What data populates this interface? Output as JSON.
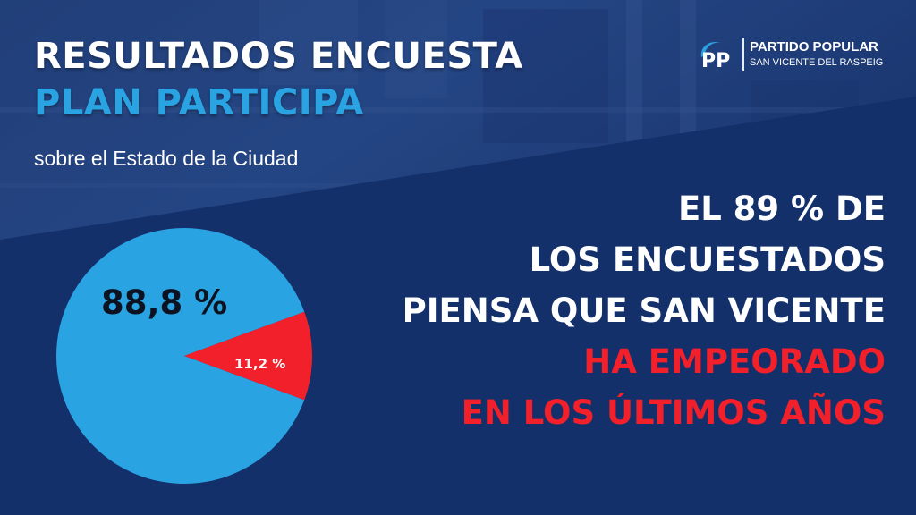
{
  "header": {
    "title_line1": "RESULTADOS ENCUESTA",
    "title_line2": "PLAN PARTICIPA",
    "subtitle": "sobre el Estado de la Ciudad"
  },
  "logo": {
    "mark": "PP",
    "name": "PARTIDO POPULAR",
    "place": "SAN VICENTE DEL RASPEIG"
  },
  "headline": {
    "line1": "EL 89 % DE",
    "line2": "LOS ENCUESTADOS",
    "line3": "PIENSA QUE SAN VICENTE",
    "line4": "HA EMPEORADO",
    "line5": "EN LOS ÚLTIMOS AÑOS"
  },
  "colors": {
    "background": "#13306b",
    "accent_blue": "#2aa3e2",
    "accent_red": "#f2202a"
  },
  "chart_data": {
    "type": "pie",
    "values": [
      88.8,
      11.2
    ],
    "data_labels": [
      "88,8 %",
      "11,2 %"
    ],
    "colors": [
      "#2aa3e2",
      "#f2202a"
    ],
    "title": "",
    "legend": false
  }
}
